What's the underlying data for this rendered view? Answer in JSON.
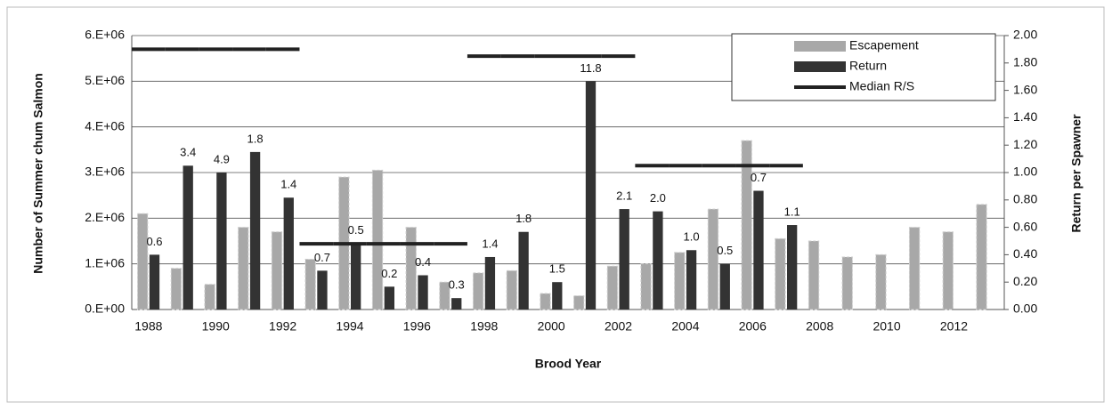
{
  "chart_data": {
    "type": "bar",
    "x_label": "Brood Year",
    "y_label": "Number of Summer chum Salmon",
    "y2_label": "Return per Spawner",
    "categories": [
      "1988",
      null,
      "1990",
      null,
      "1992",
      null,
      "1994",
      null,
      "1996",
      null,
      "1998",
      null,
      "2000",
      null,
      "2002",
      null,
      "2004",
      null,
      "2006",
      null,
      "2008",
      null,
      "2010",
      null,
      "2012",
      null
    ],
    "series": [
      {
        "name": "Escapement",
        "color": "#a8a8a8",
        "values": [
          2100000,
          900000,
          550000,
          1800000,
          1700000,
          1100000,
          2900000,
          3050000,
          1800000,
          600000,
          800000,
          850000,
          350000,
          300000,
          950000,
          1000000,
          1250000,
          2200000,
          3700000,
          1550000,
          1500000,
          1150000,
          1200000,
          1800000,
          1700000,
          2300000
        ]
      },
      {
        "name": "Return",
        "color": "#333333",
        "values": [
          1200000,
          3150000,
          3000000,
          3450000,
          2450000,
          850000,
          1450000,
          500000,
          750000,
          250000,
          1150000,
          1700000,
          600000,
          5000000,
          2200000,
          2150000,
          1300000,
          1000000,
          2600000,
          1850000,
          null,
          null,
          null,
          null,
          null,
          null
        ]
      },
      {
        "name": "Median R/S",
        "color": "#222222",
        "axis": "y2",
        "values": [
          1.9,
          1.9,
          1.9,
          1.9,
          1.9,
          0.48,
          0.48,
          0.48,
          0.48,
          0.48,
          1.85,
          1.85,
          1.85,
          1.85,
          1.85,
          1.05,
          1.05,
          1.05,
          1.05,
          1.05,
          null,
          null,
          null,
          null,
          null,
          null
        ]
      }
    ],
    "annotations": [
      "0.6",
      "3.4",
      "4.9",
      "1.8",
      "1.4",
      "0.7",
      "0.5",
      "0.2",
      "0.4",
      "0.3",
      "1.4",
      "1.8",
      "1.5",
      "11.8",
      "2.1",
      "2.0",
      "1.0",
      "0.5",
      "0.7",
      "1.1"
    ],
    "ylim": [
      0,
      6000000
    ],
    "yticks": [
      {
        "value": 0,
        "label": "0.E+00"
      },
      {
        "value": 1000000,
        "label": "1.E+06"
      },
      {
        "value": 2000000,
        "label": "2.E+06"
      },
      {
        "value": 3000000,
        "label": "3.E+06"
      },
      {
        "value": 4000000,
        "label": "4.E+06"
      },
      {
        "value": 5000000,
        "label": "5.E+06"
      },
      {
        "value": 6000000,
        "label": "6.E+06"
      }
    ],
    "y2lim": [
      0,
      2
    ],
    "y2ticks": [
      {
        "value": 0,
        "label": "0.00"
      },
      {
        "value": 0.2,
        "label": "0.20"
      },
      {
        "value": 0.4,
        "label": "0.40"
      },
      {
        "value": 0.6,
        "label": "0.60"
      },
      {
        "value": 0.8,
        "label": "0.80"
      },
      {
        "value": 1,
        "label": "1.00"
      },
      {
        "value": 1.2,
        "label": "1.20"
      },
      {
        "value": 1.4,
        "label": "1.40"
      },
      {
        "value": 1.6,
        "label": "1.60"
      },
      {
        "value": 1.8,
        "label": "1.80"
      },
      {
        "value": 2,
        "label": "2.00"
      }
    ],
    "grid": true,
    "legend": "top-right"
  }
}
